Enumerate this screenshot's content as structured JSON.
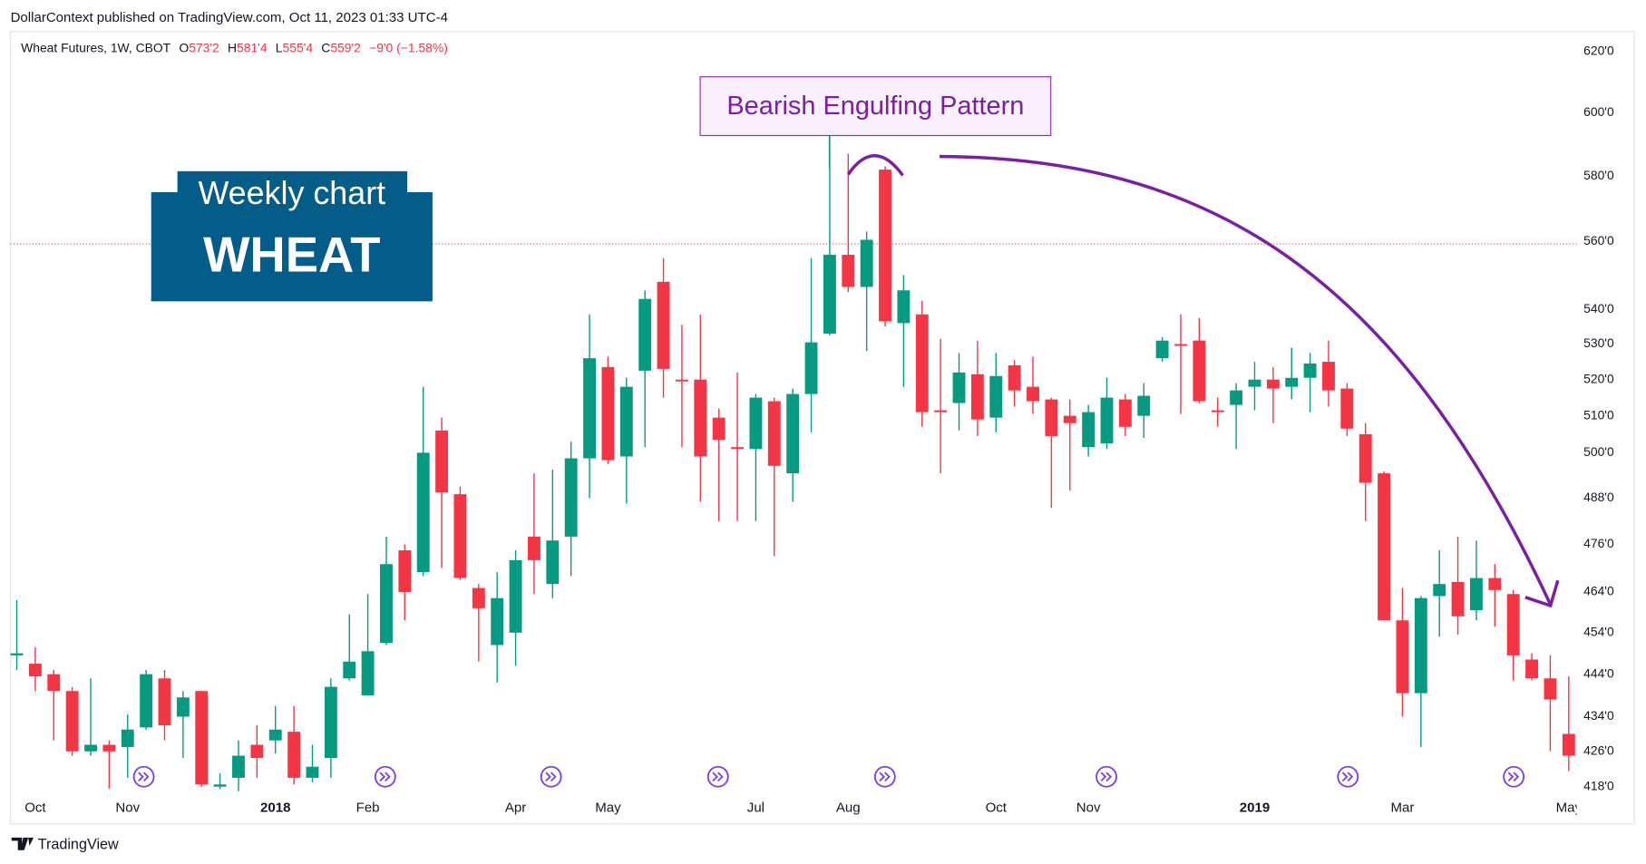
{
  "attribution": "DollarContext published on TradingView.com, Oct 11, 2023 01:33 UTC-4",
  "footer": "TradingView",
  "chart_data": {
    "type": "candlestick",
    "legend_header": {
      "symbol": "Wheat Futures, 1W, CBOT",
      "fields": [
        {
          "key": "O",
          "value": "573'2"
        },
        {
          "key": "H",
          "value": "581'4"
        },
        {
          "key": "L",
          "value": "555'4"
        },
        {
          "key": "C",
          "value": "559'2"
        }
      ],
      "change": "−9'0 (−1.58%)"
    },
    "annotation": "Bearish Engulfing Pattern",
    "badge": {
      "line1": "Weekly chart",
      "line2": "WHEAT"
    },
    "up_color": "#089981",
    "down_color": "#f23645",
    "log_scale": true,
    "grid": false,
    "price_line": 559.25,
    "ylim": [
      416,
      626
    ],
    "yticks": [
      {
        "value": 418,
        "label": "418'0"
      },
      {
        "value": 426,
        "label": "426'0"
      },
      {
        "value": 434,
        "label": "434'0"
      },
      {
        "value": 444,
        "label": "444'0"
      },
      {
        "value": 454,
        "label": "454'0"
      },
      {
        "value": 464,
        "label": "464'0"
      },
      {
        "value": 476,
        "label": "476'0"
      },
      {
        "value": 488,
        "label": "488'0"
      },
      {
        "value": 500,
        "label": "500'0"
      },
      {
        "value": 510,
        "label": "510'0"
      },
      {
        "value": 520,
        "label": "520'0"
      },
      {
        "value": 530,
        "label": "530'0"
      },
      {
        "value": 540,
        "label": "540'0"
      },
      {
        "value": 560,
        "label": "560'0"
      },
      {
        "value": 580,
        "label": "580'0"
      },
      {
        "value": 600,
        "label": "600'0"
      },
      {
        "value": 620,
        "label": "620'0"
      }
    ],
    "categories": [
      null,
      "Oct",
      null,
      null,
      null,
      null,
      "Nov",
      null,
      null,
      null,
      null,
      null,
      null,
      null,
      "2018",
      null,
      null,
      null,
      null,
      "Feb",
      null,
      null,
      null,
      null,
      null,
      null,
      null,
      "Apr",
      null,
      null,
      null,
      null,
      "May",
      null,
      null,
      null,
      null,
      null,
      null,
      null,
      "Jul",
      null,
      null,
      null,
      null,
      "Aug",
      null,
      null,
      null,
      null,
      null,
      null,
      null,
      "Oct",
      null,
      null,
      null,
      null,
      "Nov",
      null,
      null,
      null,
      null,
      null,
      null,
      null,
      null,
      "2019",
      null,
      null,
      null,
      null,
      null,
      null,
      null,
      "Mar",
      null,
      null,
      null,
      null,
      null,
      null,
      null,
      null,
      "May"
    ],
    "open": [
      448.5,
      446.5,
      444,
      440,
      426,
      427.5,
      427,
      431.5,
      443,
      434,
      440,
      418,
      420,
      427.5,
      428.5,
      430.5,
      420,
      424.5,
      443,
      439,
      451.5,
      474.5,
      469,
      506,
      489,
      465,
      451,
      454,
      478,
      466,
      478,
      498.5,
      523.5,
      499,
      522.5,
      548,
      520,
      520,
      509.5,
      501.5,
      501,
      514,
      494.5,
      516,
      533,
      556,
      546.5,
      582,
      536,
      538.5,
      511.5,
      513.5,
      521.5,
      509.5,
      524,
      518,
      514.5,
      510,
      501.5,
      502.5,
      514.5,
      510,
      526,
      530,
      531,
      511.5,
      513,
      518,
      520,
      518,
      520.5,
      525,
      517.5,
      505,
      494.5,
      457,
      439.5,
      463,
      466.5,
      459.5,
      467.5,
      463.5,
      447.5,
      443,
      430
    ],
    "high": [
      462,
      450.5,
      445,
      441,
      443,
      428.5,
      434.5,
      445,
      445,
      440,
      440,
      421,
      428.5,
      432,
      436.5,
      436.5,
      427.5,
      443,
      458.5,
      463.5,
      478,
      476,
      518,
      509.5,
      491,
      466,
      469,
      474.5,
      494.5,
      495.5,
      503,
      538.5,
      526.5,
      520.5,
      545.5,
      555,
      535.5,
      538.5,
      512,
      522,
      516,
      515,
      517.5,
      555,
      593.5,
      587,
      563,
      583,
      550,
      542.5,
      531.5,
      527.5,
      531,
      527.5,
      525.5,
      526.5,
      515,
      514.5,
      513,
      520.5,
      516,
      519,
      532,
      538.5,
      537.5,
      515,
      519,
      525,
      523.5,
      529,
      527.5,
      531,
      519,
      508,
      495,
      465,
      463,
      474.5,
      478,
      477,
      471,
      464.5,
      449,
      448.5,
      443.5
    ],
    "low": [
      445,
      440,
      428.5,
      425,
      425,
      417.5,
      420,
      431,
      428.5,
      424.5,
      418,
      417.5,
      417,
      420,
      425.5,
      418.5,
      419,
      420,
      442.5,
      439,
      451,
      457,
      468,
      470,
      467,
      447,
      442,
      446,
      463.5,
      462.5,
      468,
      488,
      497,
      486.5,
      501.5,
      515,
      501.5,
      487,
      482,
      482,
      482,
      473,
      487,
      505.5,
      532.5,
      545,
      528,
      535,
      518,
      507,
      494.5,
      506,
      504.5,
      505.5,
      512.5,
      510.5,
      485.5,
      490,
      499,
      501,
      504.5,
      504,
      525,
      510.5,
      513.5,
      507,
      501,
      511.5,
      508,
      514.5,
      511,
      512.5,
      504.5,
      482,
      457,
      434,
      427,
      453,
      453.5,
      457,
      455.5,
      442.5,
      442.5,
      426,
      421.5
    ],
    "close": [
      449,
      443.5,
      440,
      426,
      427.5,
      426,
      431,
      444,
      432,
      438.5,
      418.5,
      418.5,
      425,
      424.5,
      431,
      420,
      422.5,
      441,
      447,
      449.5,
      471,
      464,
      500,
      489.5,
      467.5,
      460,
      462.5,
      472,
      472,
      477,
      498.5,
      526,
      498,
      518,
      543,
      523,
      519.5,
      499,
      503.5,
      501,
      515,
      496.5,
      516,
      530.5,
      556,
      546.5,
      560.5,
      536.5,
      545.5,
      511,
      511,
      522,
      509,
      521,
      517,
      514,
      504.5,
      508,
      511,
      515,
      507,
      515.5,
      531,
      529.5,
      514,
      511,
      517,
      520,
      517.5,
      520.5,
      524.5,
      517,
      506.5,
      492,
      457,
      439.5,
      462.5,
      466,
      458,
      467.5,
      464.5,
      448.5,
      443,
      438,
      425
    ]
  }
}
